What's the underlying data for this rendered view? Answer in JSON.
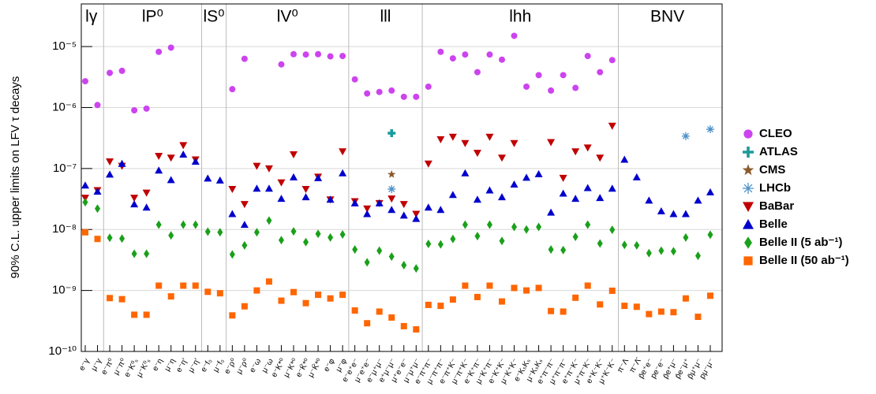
{
  "chart_data": {
    "type": "scatter",
    "y_label": "90% C.L. upper limits on LFV τ decays",
    "log_y": true,
    "grid": true,
    "legend": "right",
    "ylim": [
      1e-10,
      5e-05
    ],
    "yticks": [
      {
        "value": 1e-10,
        "label": "10⁻¹⁰"
      },
      {
        "value": 1e-09,
        "label": "10⁻⁹"
      },
      {
        "value": 1e-08,
        "label": "10⁻⁸"
      },
      {
        "value": 1e-07,
        "label": "10⁻⁷"
      },
      {
        "value": 1e-06,
        "label": "10⁻⁶"
      },
      {
        "value": 1e-05,
        "label": "10⁻⁵"
      }
    ],
    "groups": [
      "lγ",
      "lP⁰",
      "lS⁰",
      "lV⁰",
      "lll",
      "lhh",
      "BNV"
    ],
    "categories": [
      "e⁻γ",
      "μ⁻γ",
      "e⁻π⁰",
      "μ⁻π⁰",
      "e⁻K⁰ₛ",
      "μ⁻K⁰ₛ",
      "e⁻η",
      "μ⁻η",
      "e⁻η′",
      "μ⁻η′",
      "e⁻f₀",
      "μ⁻f₀",
      "e⁻ρ⁰",
      "μ⁻ρ⁰",
      "e⁻ω",
      "μ⁻ω",
      "e⁻K*⁰",
      "μ⁻K*⁰",
      "e⁻K̄*⁰",
      "μ⁻K̄*⁰",
      "e⁻φ",
      "μ⁻φ",
      "e⁻e⁺e⁻",
      "μ⁻e⁺e⁻",
      "e⁻μ⁺μ⁻",
      "e⁺μ⁻μ⁻",
      "μ⁺e⁻e⁻",
      "μ⁻μ⁺μ⁻",
      "e⁻π⁺π⁻",
      "μ⁻π⁺π⁻",
      "e⁻π⁺K⁻",
      "μ⁻π⁺K⁻",
      "e⁻K⁺π⁻",
      "μ⁻K⁺π⁻",
      "e⁻K⁺K⁻",
      "μ⁻K⁺K⁻",
      "e⁻KₛKₛ",
      "μ⁻KₛKₛ",
      "e⁺π⁻π⁻",
      "μ⁺π⁻π⁻",
      "e⁺π⁻K⁻",
      "μ⁺π⁻K⁻",
      "e⁺K⁻K⁻",
      "μ⁺K⁻K⁻",
      "π⁻Λ",
      "π⁻Λ̄",
      "p̄e⁺e⁻",
      "pe⁻e⁻",
      "p̄e⁺μ⁻",
      "p̄e⁻μ⁺",
      "p̄μ⁺μ⁻",
      "pμ⁻μ⁻"
    ],
    "series": [
      {
        "name": "CLEO",
        "color": "#cc44ee",
        "marker": "circle",
        "values": [
          2.7e-06,
          1.1e-06,
          3.7e-06,
          4e-06,
          9e-07,
          9.6e-07,
          8.2e-06,
          9.6e-06,
          null,
          null,
          null,
          null,
          2e-06,
          6.3e-06,
          null,
          null,
          5.1e-06,
          7.5e-06,
          7.4e-06,
          7.5e-06,
          6.9e-06,
          7e-06,
          2.9e-06,
          1.7e-06,
          1.8e-06,
          1.9e-06,
          1.5e-06,
          1.5e-06,
          2.2e-06,
          8.2e-06,
          6.4e-06,
          7.4e-06,
          3.8e-06,
          7.4e-06,
          6.1e-06,
          1.5e-05,
          2.2e-06,
          3.4e-06,
          1.9e-06,
          3.4e-06,
          2.1e-06,
          7e-06,
          3.8e-06,
          6e-06,
          null,
          null,
          null,
          null,
          null,
          null,
          null,
          null
        ]
      },
      {
        "name": "ATLAS",
        "color": "#1a9a9a",
        "marker": "cross",
        "values": [
          null,
          null,
          null,
          null,
          null,
          null,
          null,
          null,
          null,
          null,
          null,
          null,
          null,
          null,
          null,
          null,
          null,
          null,
          null,
          null,
          null,
          null,
          null,
          null,
          null,
          3.8e-07,
          null,
          null,
          null,
          null,
          null,
          null,
          null,
          null,
          null,
          null,
          null,
          null,
          null,
          null,
          null,
          null,
          null,
          null,
          null,
          null,
          null,
          null,
          null,
          null,
          null,
          null
        ]
      },
      {
        "name": "CMS",
        "color": "#8b5a2b",
        "marker": "star",
        "values": [
          null,
          null,
          null,
          null,
          null,
          null,
          null,
          null,
          null,
          null,
          null,
          null,
          null,
          null,
          null,
          null,
          null,
          null,
          null,
          null,
          null,
          null,
          null,
          null,
          null,
          8e-08,
          null,
          null,
          null,
          null,
          null,
          null,
          null,
          null,
          null,
          null,
          null,
          null,
          null,
          null,
          null,
          null,
          null,
          null,
          null,
          null,
          null,
          null,
          null,
          null,
          null,
          null
        ]
      },
      {
        "name": "LHCb",
        "color": "#4a90c8",
        "marker": "asterisk",
        "values": [
          null,
          null,
          null,
          null,
          null,
          null,
          null,
          null,
          null,
          null,
          null,
          null,
          null,
          null,
          null,
          null,
          null,
          null,
          null,
          null,
          null,
          null,
          null,
          null,
          null,
          4.6e-08,
          null,
          null,
          null,
          null,
          null,
          null,
          null,
          null,
          null,
          null,
          null,
          null,
          null,
          null,
          null,
          null,
          null,
          null,
          null,
          null,
          null,
          null,
          null,
          3.4e-07,
          null,
          4.4e-07
        ]
      },
      {
        "name": "BaBar",
        "color": "#c00000",
        "marker": "triangle-down",
        "values": [
          3.3e-08,
          4.4e-08,
          1.3e-07,
          1.1e-07,
          3.3e-08,
          4e-08,
          1.6e-07,
          1.5e-07,
          2.4e-07,
          1.4e-07,
          null,
          null,
          4.6e-08,
          2.6e-08,
          1.1e-07,
          1e-07,
          5.9e-08,
          1.7e-07,
          4.6e-08,
          7.3e-08,
          3.1e-08,
          1.9e-07,
          2.9e-08,
          2.2e-08,
          2.7e-08,
          3.2e-08,
          2.6e-08,
          1.8e-08,
          1.2e-07,
          3e-07,
          3.3e-07,
          2.6e-07,
          1.8e-07,
          3.3e-07,
          1.5e-07,
          2.6e-07,
          null,
          null,
          2.7e-07,
          7e-08,
          1.9e-07,
          2.2e-07,
          1.5e-07,
          5e-07,
          null,
          null,
          null,
          null,
          null,
          null,
          null,
          null
        ]
      },
      {
        "name": "Belle",
        "color": "#0000cc",
        "marker": "triangle-up",
        "values": [
          5.3e-08,
          4.2e-08,
          8e-08,
          1.2e-07,
          2.6e-08,
          2.3e-08,
          9.3e-08,
          6.5e-08,
          1.7e-07,
          1.3e-07,
          6.9e-08,
          6.4e-08,
          1.8e-08,
          1.2e-08,
          4.7e-08,
          4.7e-08,
          3.2e-08,
          7.2e-08,
          3.4e-08,
          7e-08,
          3.1e-08,
          8.4e-08,
          2.7e-08,
          1.8e-08,
          2.7e-08,
          2.1e-08,
          1.7e-08,
          1.5e-08,
          2.3e-08,
          2.1e-08,
          3.7e-08,
          8.4e-08,
          3.1e-08,
          4.4e-08,
          3.4e-08,
          5.5e-08,
          7.1e-08,
          8.1e-08,
          1.9e-08,
          3.9e-08,
          3.2e-08,
          4.8e-08,
          3.3e-08,
          4.7e-08,
          1.4e-07,
          7.2e-08,
          3e-08,
          2e-08,
          1.8e-08,
          1.8e-08,
          3e-08,
          4.1e-08
        ]
      },
      {
        "name": "Belle II (5 ab⁻¹)",
        "color": "#1aa01a",
        "marker": "diamond",
        "values": [
          2.8e-08,
          2.2e-08,
          7.3e-09,
          7.1e-09,
          4e-09,
          4e-09,
          1.2e-08,
          8e-09,
          1.2e-08,
          1.2e-08,
          9.2e-09,
          9e-09,
          3.9e-09,
          5.5e-09,
          9e-09,
          1.4e-08,
          6.7e-09,
          9.3e-09,
          6.2e-09,
          8.5e-09,
          7.4e-09,
          8.3e-09,
          4.7e-09,
          2.9e-09,
          4.5e-09,
          3.6e-09,
          2.6e-09,
          2.3e-09,
          5.8e-09,
          5.7e-09,
          7e-09,
          1.2e-08,
          7.8e-09,
          1.2e-08,
          6.5e-09,
          1.1e-08,
          1e-08,
          1.1e-08,
          4.7e-09,
          4.6e-09,
          7.6e-09,
          1.2e-08,
          5.9e-09,
          9.9e-09,
          5.6e-09,
          5.5e-09,
          4.1e-09,
          4.5e-09,
          4.4e-09,
          7.4e-09,
          3.7e-09,
          8.2e-09
        ]
      },
      {
        "name": "Belle II (50 ab⁻¹)",
        "color": "#ff6600",
        "marker": "square",
        "values": [
          9e-09,
          7e-09,
          7.5e-10,
          7.2e-10,
          4e-10,
          4e-10,
          1.2e-09,
          8e-10,
          1.2e-09,
          1.2e-09,
          9.5e-10,
          9e-10,
          3.9e-10,
          5.5e-10,
          1e-09,
          1.4e-09,
          6.8e-10,
          9.4e-10,
          6.2e-10,
          8.5e-10,
          7.4e-10,
          8.5e-10,
          4.7e-10,
          2.9e-10,
          4.5e-10,
          3.6e-10,
          2.6e-10,
          2.3e-10,
          5.8e-10,
          5.6e-10,
          7.1e-10,
          1.2e-09,
          7.8e-10,
          1.2e-09,
          6.6e-10,
          1.1e-09,
          1e-09,
          1.1e-09,
          4.6e-10,
          4.5e-10,
          7.6e-10,
          1.2e-09,
          5.9e-10,
          9.9e-10,
          5.6e-10,
          5.4e-10,
          4.1e-10,
          4.5e-10,
          4.4e-10,
          7.4e-10,
          3.7e-10,
          8.2e-10
        ]
      }
    ]
  }
}
